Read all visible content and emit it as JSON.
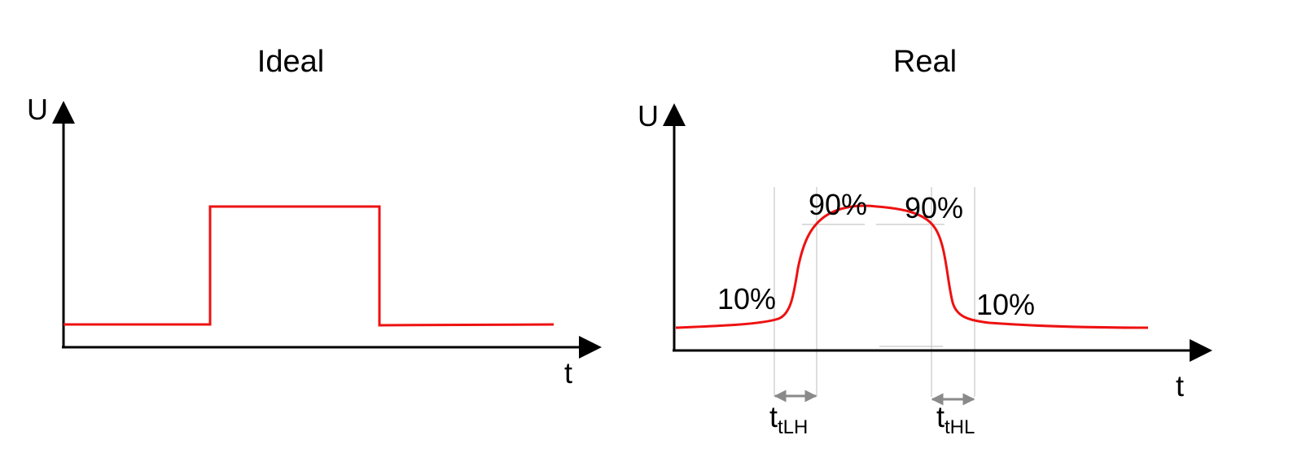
{
  "colors": {
    "signal": "#ee1111",
    "axis": "#000000",
    "guide": "#c8c8c8",
    "marker": "#8a8a8a"
  },
  "ideal": {
    "title": "Ideal",
    "y_label": "U",
    "x_label": "t"
  },
  "real": {
    "title": "Real",
    "y_label": "U",
    "x_label": "t",
    "rise_low_label": "10%",
    "rise_high_label": "90%",
    "fall_high_label": "90%",
    "fall_low_label": "10%",
    "rise_time_symbol": "t",
    "rise_time_subscript": "tLH",
    "fall_time_symbol": "t",
    "fall_time_subscript": "tHL"
  }
}
